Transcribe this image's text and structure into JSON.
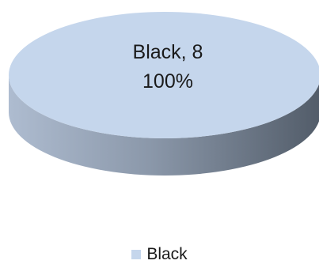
{
  "chart_data": {
    "type": "pie",
    "style": "3d",
    "series": [
      {
        "name": "Black",
        "value": 8,
        "percent": "100%",
        "color": "#c5d6ec"
      }
    ],
    "data_labels": [
      {
        "category": "Black, 8",
        "percent": "100%"
      }
    ],
    "legend": {
      "position": "bottom",
      "entries": [
        "Black"
      ]
    }
  }
}
